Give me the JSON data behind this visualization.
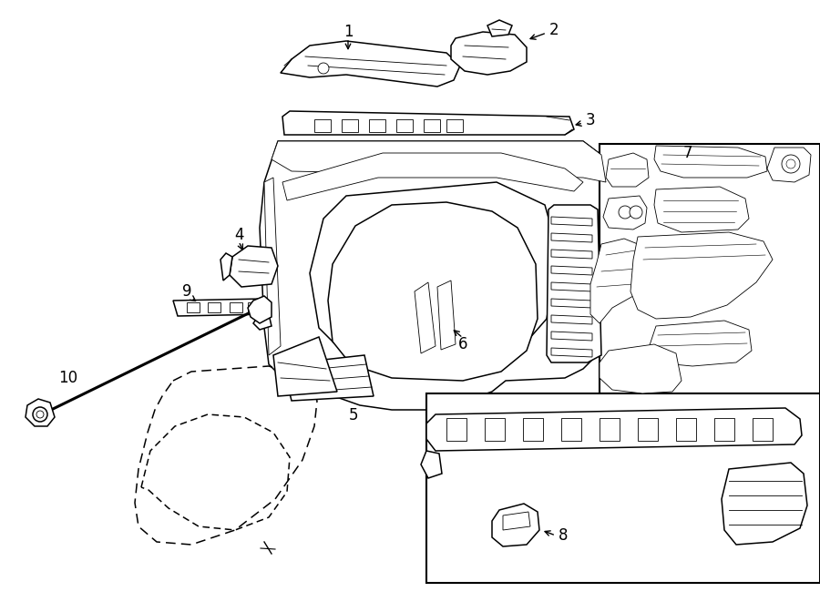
{
  "background_color": "#ffffff",
  "line_color": "#000000",
  "figsize": [
    9.0,
    6.61
  ],
  "dpi": 100,
  "lw_main": 1.1,
  "lw_detail": 0.6,
  "label_fontsize": 12
}
